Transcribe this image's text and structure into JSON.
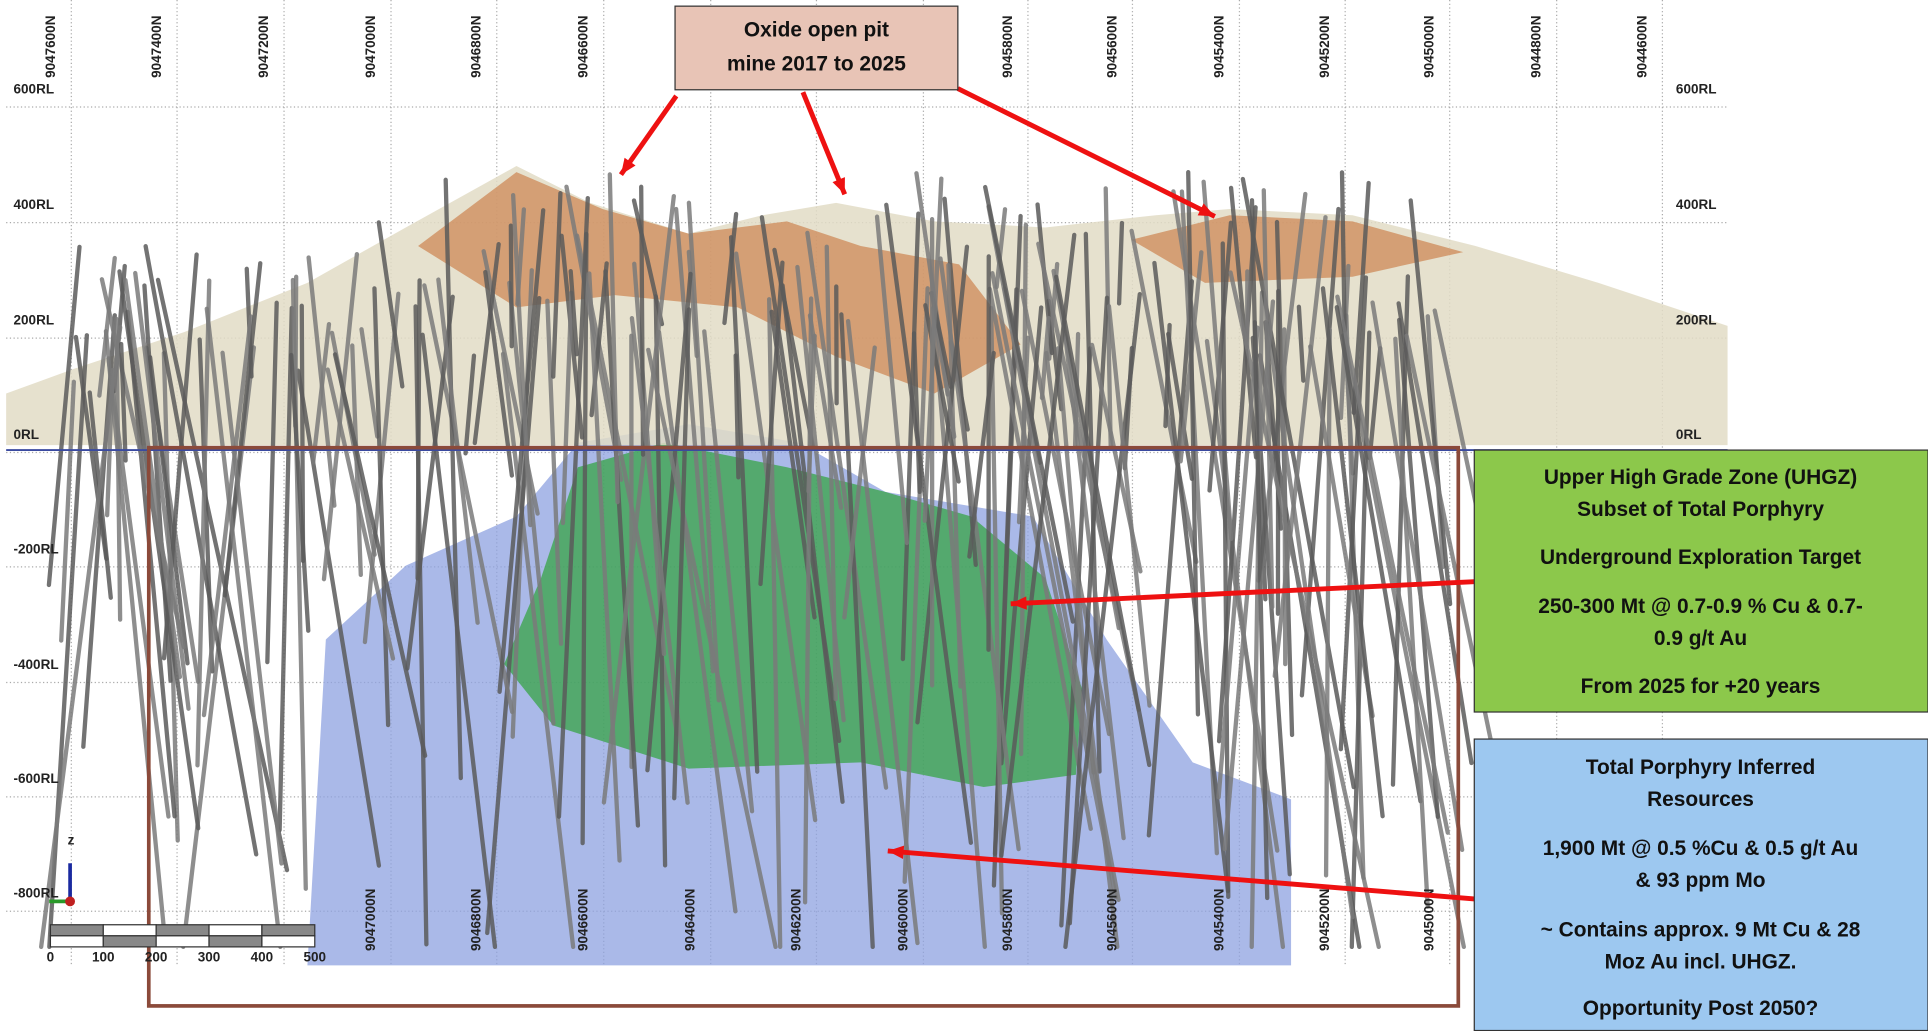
{
  "top_northings": [
    "9047600N",
    "9047400N",
    "9047200N",
    "9047000N",
    "9046800N",
    "9046600N",
    "9045800N",
    "9045600N",
    "9045400N",
    "9045200N",
    "9045000N",
    "9044800N",
    "9044600N"
  ],
  "bottom_northings": [
    "9047000N",
    "9046800N",
    "9046600N",
    "9046400N",
    "9046200N",
    "9046000N",
    "9045800N",
    "9045600N",
    "9045400N",
    "9045200N",
    "9045000N"
  ],
  "left_levels": [
    "600RL",
    "400RL",
    "200RL",
    "0RL",
    "-200RL",
    "-400RL",
    "-600RL",
    "-800RL"
  ],
  "right_levels": [
    "600RL",
    "400RL",
    "200RL",
    "0RL"
  ],
  "scale_labels": [
    "0",
    "100",
    "200",
    "300",
    "400",
    "500"
  ],
  "axis_label": "z",
  "oxide_callout": {
    "lines": [
      "Oxide open pit",
      "mine 2017 to 2025"
    ]
  },
  "uhgz_callout": {
    "lines": [
      "Upper High Grade Zone (UHGZ)",
      "Subset of Total Porphyry",
      "Underground Exploration Target",
      "250-300 Mt @ 0.7-0.9 % Cu & 0.7-",
      "0.9 g/t Au",
      "From 2025 for +20 years"
    ]
  },
  "porphyry_callout": {
    "lines": [
      "Total Porphyry Inferred",
      "Resources",
      "1,900 Mt @ 0.5 %Cu & 0.5 g/t Au",
      "& 93 ppm Mo",
      "~ Contains approx. 9 Mt Cu & 28",
      "Moz Au incl. UHGZ.",
      "Opportunity Post 2050?"
    ]
  }
}
